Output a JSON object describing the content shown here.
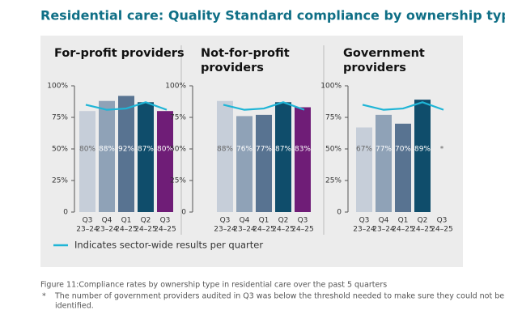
{
  "title": "Residential care: Quality Standard compliance by ownership type",
  "legend": {
    "label": "Indicates sector-wide results per quarter",
    "color": "#1fb5d6"
  },
  "caption": "Figure 11:Compliance rates by ownership type in residential care over the past 5 quarters",
  "footnote": {
    "marker": "*",
    "text": [
      "The number of government providers audited in Q3 was below the threshold needed to make sure they could not be",
      "identified."
    ]
  },
  "chart_data": [
    {
      "type": "bar",
      "title": [
        "For-profit providers"
      ],
      "categories": [
        [
          "Q3",
          "23–24"
        ],
        [
          "Q4",
          "23–24"
        ],
        [
          "Q1",
          "24–25"
        ],
        [
          "Q2",
          "24–25"
        ],
        [
          "Q3",
          "24–25"
        ]
      ],
      "values": [
        80,
        88,
        92,
        87,
        80
      ],
      "value_labels": [
        "80%",
        "88%",
        "92%",
        "87%",
        "80%"
      ],
      "colors": [
        "#c6ced9",
        "#8fa2b7",
        "#587391",
        "#0f4d6b",
        "#6f1d77"
      ],
      "sector_values": [
        85,
        81,
        82,
        87,
        81
      ],
      "ylim": [
        0,
        100
      ],
      "yticks": [
        {
          "value": 0,
          "label": "0"
        },
        {
          "value": 25,
          "label": "25%"
        },
        {
          "value": 50,
          "label": "50%"
        },
        {
          "value": 75,
          "label": "75%"
        },
        {
          "value": 100,
          "label": "100%"
        }
      ]
    },
    {
      "type": "bar",
      "title": [
        "Not-for-profit",
        "providers"
      ],
      "categories": [
        [
          "Q3",
          "23–24"
        ],
        [
          "Q4",
          "23–24"
        ],
        [
          "Q1",
          "24–25"
        ],
        [
          "Q2",
          "24–25"
        ],
        [
          "Q3",
          "24–25"
        ]
      ],
      "values": [
        88,
        76,
        77,
        87,
        83
      ],
      "value_labels": [
        "88%",
        "76%",
        "77%",
        "87%",
        "83%"
      ],
      "colors": [
        "#c6ced9",
        "#8fa2b7",
        "#587391",
        "#0f4d6b",
        "#6f1d77"
      ],
      "sector_values": [
        85,
        81,
        82,
        87,
        81
      ],
      "ylim": [
        0,
        100
      ],
      "yticks": [
        {
          "value": 0,
          "label": "0"
        },
        {
          "value": 25,
          "label": "25%"
        },
        {
          "value": 50,
          "label": "50%"
        },
        {
          "value": 75,
          "label": "75%"
        },
        {
          "value": 100,
          "label": "100%"
        }
      ]
    },
    {
      "type": "bar",
      "title": [
        "Government",
        "providers"
      ],
      "categories": [
        [
          "Q3",
          "23–24"
        ],
        [
          "Q4",
          "23–24"
        ],
        [
          "Q1",
          "24–25"
        ],
        [
          "Q2",
          "24–25"
        ],
        [
          "Q3",
          "24–25"
        ]
      ],
      "values": [
        67,
        77,
        70,
        89,
        null
      ],
      "value_labels": [
        "67%",
        "77%",
        "70%",
        "89%",
        "*"
      ],
      "colors": [
        "#c6ced9",
        "#8fa2b7",
        "#587391",
        "#0f4d6b",
        "#6f1d77"
      ],
      "sector_values": [
        85,
        81,
        82,
        87,
        81
      ],
      "ylim": [
        0,
        100
      ],
      "yticks": [
        {
          "value": 0,
          "label": "0"
        },
        {
          "value": 25,
          "label": "25%"
        },
        {
          "value": 50,
          "label": "50%"
        },
        {
          "value": 75,
          "label": "75%"
        },
        {
          "value": 100,
          "label": "100%"
        }
      ]
    }
  ]
}
